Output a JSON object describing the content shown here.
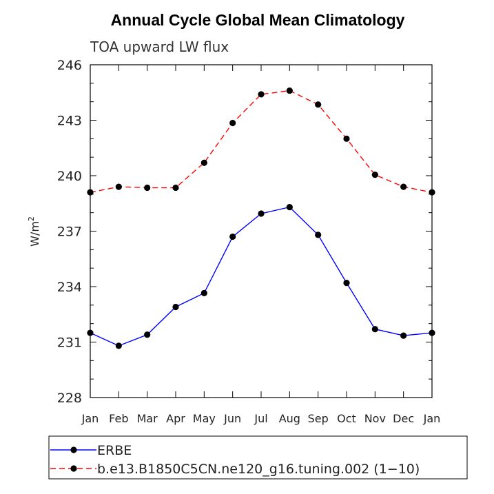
{
  "chart_data": {
    "type": "line",
    "title": "Annual Cycle Global Mean Climatology",
    "subtitle": "TOA upward LW flux",
    "xlabel": "",
    "ylabel": "W/m",
    "ylabel_superscript": "2",
    "ylim": [
      228,
      246
    ],
    "yticks": [
      228,
      231,
      234,
      237,
      240,
      243,
      246
    ],
    "categories": [
      "Jan",
      "Feb",
      "Mar",
      "Apr",
      "May",
      "Jun",
      "Jul",
      "Aug",
      "Sep",
      "Oct",
      "Nov",
      "Dec",
      "Jan"
    ],
    "series": [
      {
        "name": "ERBE",
        "color": "#0000ff",
        "dash": "solid",
        "values": [
          231.5,
          230.8,
          231.4,
          232.9,
          233.65,
          236.7,
          237.95,
          238.3,
          236.8,
          234.2,
          231.7,
          231.35,
          231.5
        ]
      },
      {
        "name": "b.e13.B1850C5CN.ne120_g16.tuning.002 (1−10)",
        "color": "#ff0000",
        "dash": "dashed",
        "values": [
          239.1,
          239.4,
          239.35,
          239.35,
          240.7,
          242.85,
          244.4,
          244.6,
          243.85,
          242.0,
          240.05,
          239.4,
          239.1
        ]
      }
    ],
    "legend_position": "bottom"
  }
}
